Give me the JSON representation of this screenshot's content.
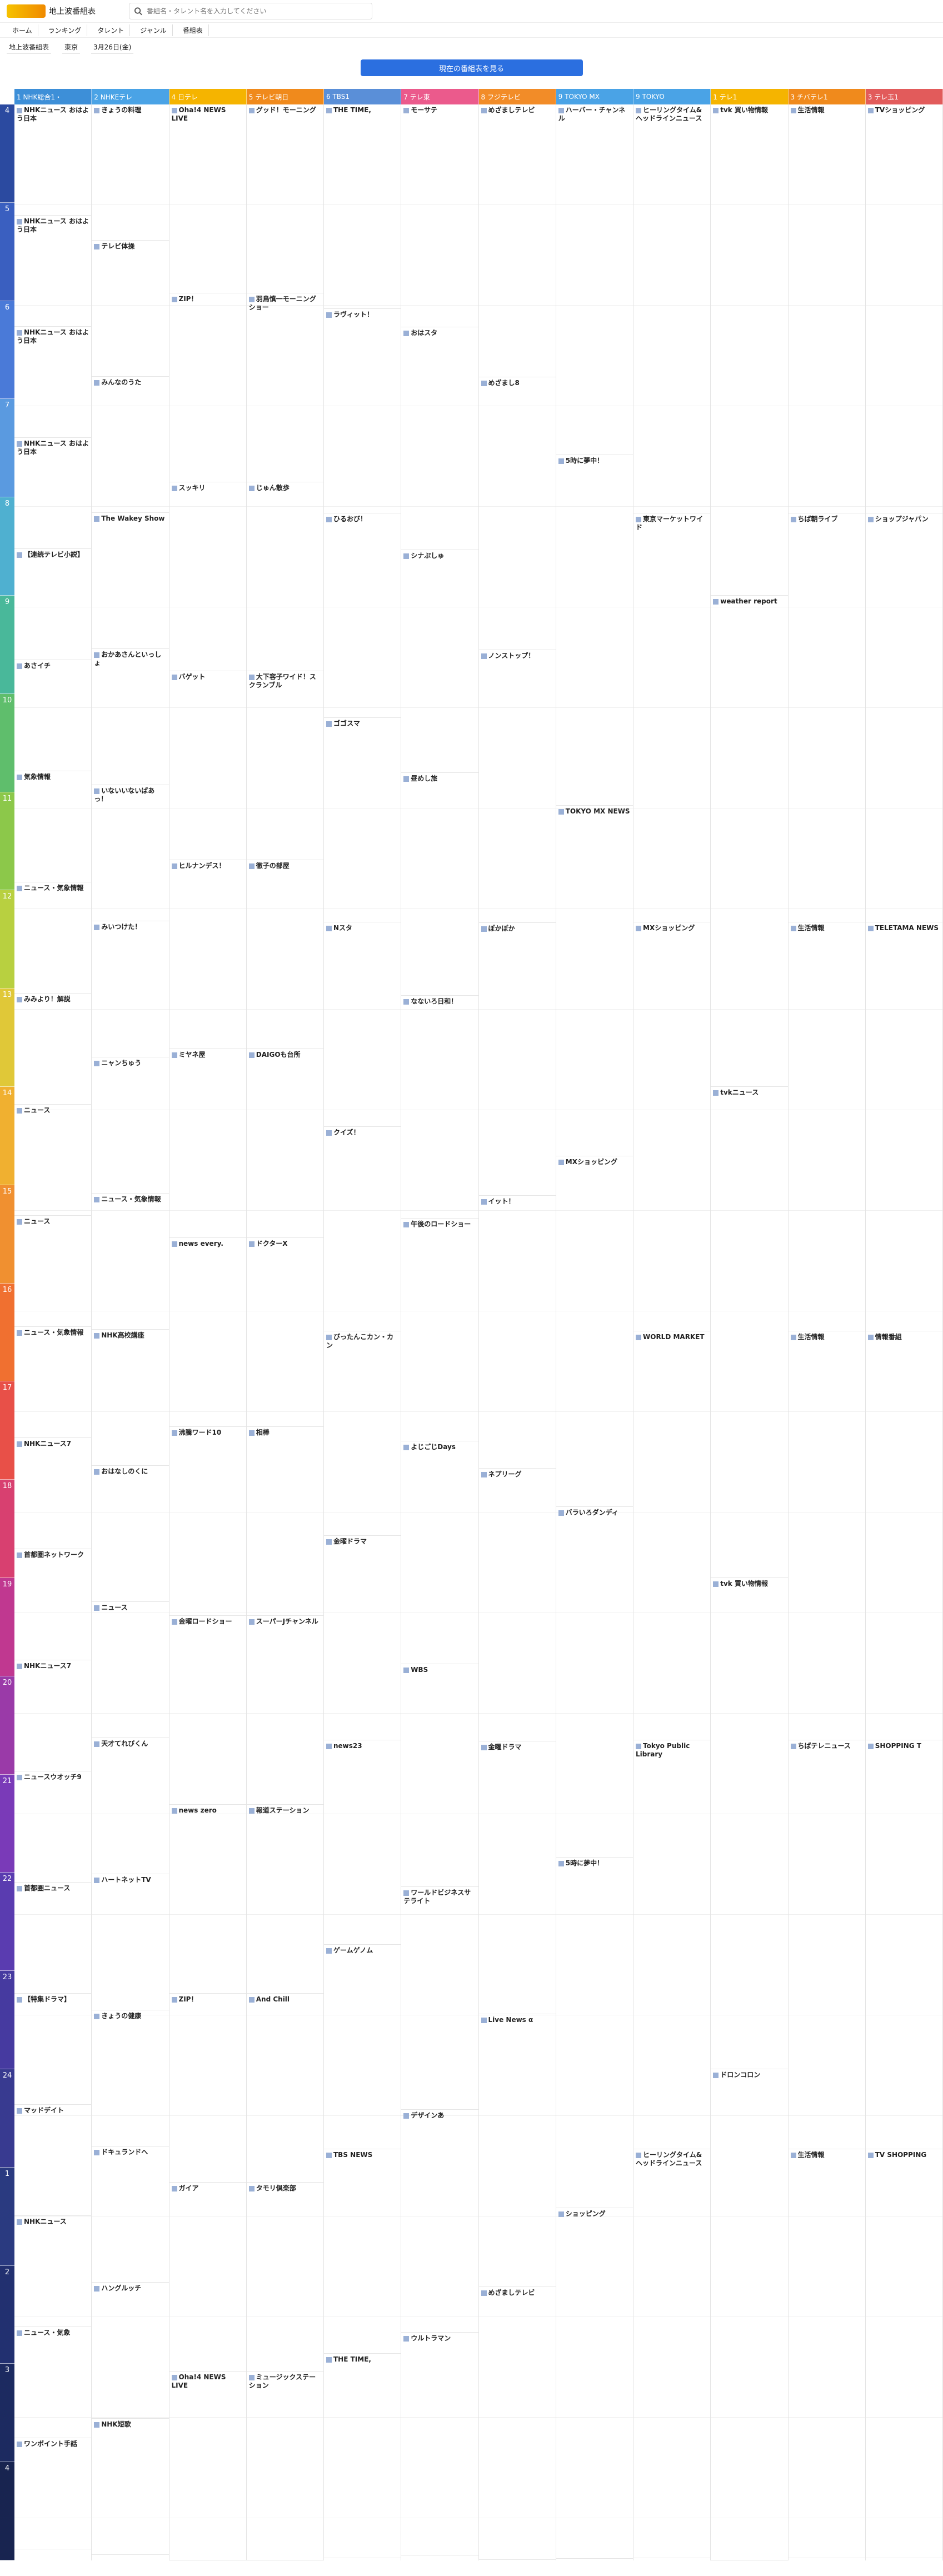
{
  "header": {
    "site_title": "地上波番組表",
    "search_placeholder": "番組名・タレント名を入力してください"
  },
  "nav": [
    "ホーム",
    "ランキング",
    "タレント",
    "ジャンル",
    "番組表"
  ],
  "filters": [
    "地上波番組表",
    "東京",
    "3月26日(金)"
  ],
  "cta_label": "現在の番組表を見る",
  "channels": [
    {
      "label": "1 NHK総合1・",
      "color": "#3d8fd8"
    },
    {
      "label": "2 NHKEテレ",
      "color": "#4aa3e6"
    },
    {
      "label": "4 日テレ",
      "color": "#f5b400"
    },
    {
      "label": "5 テレビ朝日",
      "color": "#f08a1c"
    },
    {
      "label": "6 TBS1",
      "color": "#5a8fd8"
    },
    {
      "label": "7 テレ東",
      "color": "#eb5a8c"
    },
    {
      "label": "8 フジテレビ",
      "color": "#f28c28"
    },
    {
      "label": "9 TOKYO MX",
      "color": "#4aa3e6"
    },
    {
      "label": "9 TOKYO",
      "color": "#4aa3e6"
    },
    {
      "label": "1 テレ1",
      "color": "#f5b400"
    },
    {
      "label": "3 チバテレ1",
      "color": "#f08a1c"
    },
    {
      "label": "3 テレ玉1",
      "color": "#e25b5b"
    }
  ],
  "hours": [
    "4",
    "5",
    "6",
    "7",
    "8",
    "9",
    "10",
    "11",
    "12",
    "13",
    "14",
    "15",
    "16",
    "17",
    "18",
    "19",
    "20",
    "21",
    "22",
    "23",
    "24",
    "1",
    "2",
    "3",
    "4"
  ],
  "hour_colors": [
    "#2b4aa0",
    "#3a5fc0",
    "#4a7ad8",
    "#5a9ae0",
    "#4fb0d0",
    "#49b89a",
    "#5fbe6c",
    "#8cc84a",
    "#b8d040",
    "#e0c838",
    "#f0b030",
    "#f09030",
    "#f07030",
    "#e85048",
    "#d84070",
    "#c03890",
    "#9a3aa8",
    "#7a3ab8",
    "#5a3cb0",
    "#463aa0",
    "#383a90",
    "#2a3a80",
    "#223070",
    "#1c2a60",
    "#182450"
  ],
  "columns": [
    [
      {
        "t": "NHKニュース おはよう日本",
        "d": ""
      },
      {
        "t": "NHKニュース おはよう日本",
        "d": ""
      },
      {
        "t": "NHKニュース おはよう日本",
        "d": ""
      },
      {
        "t": "NHKニュース おはよう日本",
        "d": ""
      },
      {
        "t": "【連続テレビ小説】",
        "d": ""
      },
      {
        "t": "あさイチ",
        "d": ""
      },
      {
        "t": "気象情報",
        "d": ""
      },
      {
        "t": "ニュース・気象情報",
        "d": ""
      },
      {
        "t": "みみより！解説",
        "d": ""
      },
      {
        "t": "ニュース",
        "d": ""
      },
      {
        "t": "ニュース",
        "d": ""
      },
      {
        "t": "ニュース・気象情報",
        "d": ""
      },
      {
        "t": "NHKニュース7",
        "d": ""
      },
      {
        "t": "首都圏ネットワーク",
        "d": ""
      },
      {
        "t": "NHKニュース7",
        "d": ""
      },
      {
        "t": "ニュースウオッチ9",
        "d": ""
      },
      {
        "t": "首都圏ニュース",
        "d": ""
      },
      {
        "t": "【特集ドラマ】",
        "d": ""
      },
      {
        "t": "マッドデイト",
        "d": ""
      },
      {
        "t": "NHKニュース",
        "d": ""
      },
      {
        "t": "ニュース・気象",
        "d": ""
      },
      {
        "t": "ワンポイント手話",
        "d": ""
      }
    ],
    [
      {
        "t": "きょうの料理",
        "d": ""
      },
      {
        "t": "テレビ体操",
        "d": ""
      },
      {
        "t": "みんなのうた",
        "d": ""
      },
      {
        "t": "The Wakey Show",
        "d": ""
      },
      {
        "t": "おかあさんといっしょ",
        "d": ""
      },
      {
        "t": "いないいないばあっ！",
        "d": ""
      },
      {
        "t": "みいつけた！",
        "d": ""
      },
      {
        "t": "ニャンちゅう",
        "d": ""
      },
      {
        "t": "ニュース・気象情報",
        "d": ""
      },
      {
        "t": "NHK高校講座",
        "d": ""
      },
      {
        "t": "おはなしのくに",
        "d": ""
      },
      {
        "t": "ニュース",
        "d": ""
      },
      {
        "t": "天才てれびくん",
        "d": ""
      },
      {
        "t": "ハートネットTV",
        "d": ""
      },
      {
        "t": "きょうの健康",
        "d": ""
      },
      {
        "t": "ドキュランドへ",
        "d": ""
      },
      {
        "t": "ハングルッチ",
        "d": ""
      },
      {
        "t": "NHK短歌",
        "d": ""
      }
    ],
    [
      {
        "t": "Oha!4 NEWS LIVE",
        "d": ""
      },
      {
        "t": "ZIP！",
        "d": ""
      },
      {
        "t": "スッキリ",
        "d": ""
      },
      {
        "t": "バゲット",
        "d": ""
      },
      {
        "t": "ヒルナンデス！",
        "d": ""
      },
      {
        "t": "ミヤネ屋",
        "d": ""
      },
      {
        "t": "news every.",
        "d": ""
      },
      {
        "t": "沸騰ワード10",
        "d": ""
      },
      {
        "t": "金曜ロードショー",
        "d": ""
      },
      {
        "t": "news zero",
        "d": ""
      },
      {
        "t": "ZIP！",
        "d": ""
      },
      {
        "t": "ガイア",
        "d": ""
      },
      {
        "t": "Oha!4 NEWS LIVE",
        "d": ""
      }
    ],
    [
      {
        "t": "グッド！モーニング",
        "d": ""
      },
      {
        "t": "羽鳥慎一モーニングショー",
        "d": ""
      },
      {
        "t": "じゅん散歩",
        "d": ""
      },
      {
        "t": "大下容子ワイド！スクランブル",
        "d": ""
      },
      {
        "t": "徹子の部屋",
        "d": ""
      },
      {
        "t": "DAIGOも台所",
        "d": ""
      },
      {
        "t": "ドクターX",
        "d": ""
      },
      {
        "t": "相棒",
        "d": ""
      },
      {
        "t": "スーパーJチャンネル",
        "d": ""
      },
      {
        "t": "報道ステーション",
        "d": ""
      },
      {
        "t": "And Chill",
        "d": ""
      },
      {
        "t": "タモリ倶楽部",
        "d": ""
      },
      {
        "t": "ミュージックステーション",
        "d": ""
      }
    ],
    [
      {
        "t": "THE TIME,",
        "d": ""
      },
      {
        "t": "ラヴィット！",
        "d": ""
      },
      {
        "t": "ひるおび！",
        "d": ""
      },
      {
        "t": "ゴゴスマ",
        "d": ""
      },
      {
        "t": "Nスタ",
        "d": ""
      },
      {
        "t": "クイズ！",
        "d": ""
      },
      {
        "t": "ぴったんこカン・カン",
        "d": ""
      },
      {
        "t": "金曜ドラマ",
        "d": ""
      },
      {
        "t": "news23",
        "d": ""
      },
      {
        "t": "ゲームゲノム",
        "d": ""
      },
      {
        "t": "TBS NEWS",
        "d": ""
      },
      {
        "t": "THE TIME,",
        "d": ""
      }
    ],
    [
      {
        "t": "モーサテ",
        "d": ""
      },
      {
        "t": "おはスタ",
        "d": ""
      },
      {
        "t": "シナぷしゅ",
        "d": ""
      },
      {
        "t": "昼めし旅",
        "d": ""
      },
      {
        "t": "なないろ日和！",
        "d": ""
      },
      {
        "t": "午後のロードショー",
        "d": ""
      },
      {
        "t": "よじごじDays",
        "d": ""
      },
      {
        "t": "WBS",
        "d": ""
      },
      {
        "t": "ワールドビジネスサテライト",
        "d": ""
      },
      {
        "t": "デザインあ",
        "d": ""
      },
      {
        "t": "ウルトラマン",
        "d": ""
      }
    ],
    [
      {
        "t": "めざましテレビ",
        "d": ""
      },
      {
        "t": "めざまし8",
        "d": ""
      },
      {
        "t": "ノンストップ！",
        "d": ""
      },
      {
        "t": "ぽかぽか",
        "d": ""
      },
      {
        "t": "イット！",
        "d": ""
      },
      {
        "t": "ネプリーグ",
        "d": ""
      },
      {
        "t": "金曜ドラマ",
        "d": ""
      },
      {
        "t": "Live News α",
        "d": ""
      },
      {
        "t": "めざましテレビ",
        "d": ""
      }
    ],
    [
      {
        "t": "ハーバー・チャンネル",
        "d": ""
      },
      {
        "t": "5時に夢中！",
        "d": ""
      },
      {
        "t": "TOKYO MX NEWS",
        "d": ""
      },
      {
        "t": "MXショッピング",
        "d": ""
      },
      {
        "t": "バラいろダンディ",
        "d": ""
      },
      {
        "t": "5時に夢中！",
        "d": ""
      },
      {
        "t": "ショッピング",
        "d": ""
      }
    ],
    [
      {
        "t": "ヒーリングタイム&ヘッドラインニュース",
        "d": ""
      },
      {
        "t": "東京マーケットワイド",
        "d": ""
      },
      {
        "t": "MXショッピング",
        "d": ""
      },
      {
        "t": "WORLD MARKET",
        "d": ""
      },
      {
        "t": "Tokyo Public Library",
        "d": ""
      },
      {
        "t": "ヒーリングタイム&ヘッドラインニュース",
        "d": ""
      }
    ],
    [
      {
        "t": "tvk 買い物情報",
        "d": ""
      },
      {
        "t": "weather report",
        "d": ""
      },
      {
        "t": "tvkニュース",
        "d": ""
      },
      {
        "t": "tvk 買い物情報",
        "d": ""
      },
      {
        "t": "ドロンコロン",
        "d": ""
      }
    ],
    [
      {
        "t": "生活情報",
        "d": ""
      },
      {
        "t": "ちば朝ライブ",
        "d": ""
      },
      {
        "t": "生活情報",
        "d": ""
      },
      {
        "t": "生活情報",
        "d": ""
      },
      {
        "t": "ちばテレニュース",
        "d": ""
      },
      {
        "t": "生活情報",
        "d": ""
      }
    ],
    [
      {
        "t": "TVショッピング",
        "d": ""
      },
      {
        "t": "ショップジャパン",
        "d": ""
      },
      {
        "t": "TELETAMA NEWS",
        "d": ""
      },
      {
        "t": "情報番組",
        "d": ""
      },
      {
        "t": "SHOPPING T",
        "d": ""
      },
      {
        "t": "TV SHOPPING",
        "d": ""
      }
    ]
  ]
}
